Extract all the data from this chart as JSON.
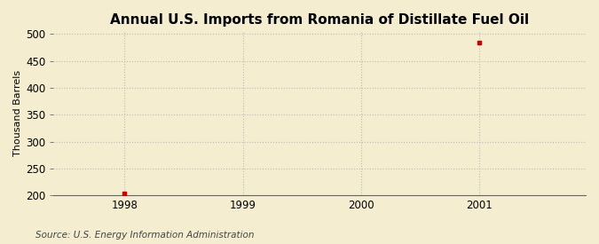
{
  "title": "Annual U.S. Imports from Romania of Distillate Fuel Oil",
  "ylabel": "Thousand Barrels",
  "source": "Source: U.S. Energy Information Administration",
  "x_data": [
    1998,
    2001
  ],
  "y_data": [
    204,
    484
  ],
  "xlim": [
    1997.4,
    2001.9
  ],
  "ylim": [
    200,
    505
  ],
  "yticks": [
    200,
    250,
    300,
    350,
    400,
    450,
    500
  ],
  "xticks": [
    1998,
    1999,
    2000,
    2001
  ],
  "point_color": "#cc0000",
  "marker": "s",
  "marker_size": 3,
  "bg_color": "#f5edcf",
  "grid_color": "#bbbbbb",
  "title_fontsize": 11,
  "label_fontsize": 8,
  "tick_fontsize": 8.5,
  "source_fontsize": 7.5
}
